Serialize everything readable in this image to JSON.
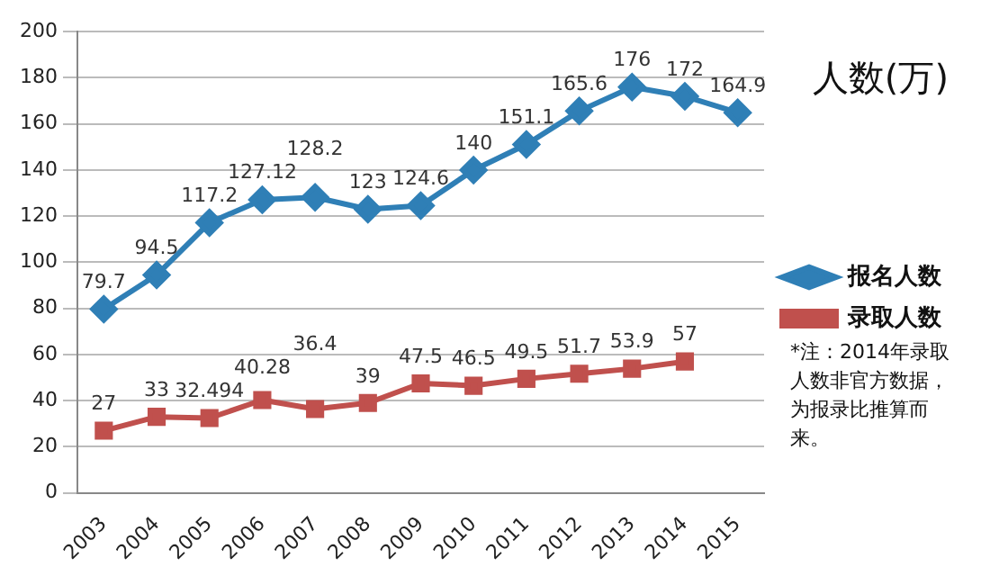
{
  "chart_data": {
    "type": "line",
    "title": "人数(万)",
    "categories": [
      "2003",
      "2004",
      "2005",
      "2006",
      "2007",
      "2008",
      "2009",
      "2010",
      "2011",
      "2012",
      "2013",
      "2014",
      "2015"
    ],
    "series": [
      {
        "name": "报名人数",
        "color": "#2f7fb6",
        "marker": "diamond",
        "values": [
          79.7,
          94.5,
          117.2,
          127.12,
          128.2,
          123,
          124.6,
          140,
          151.1,
          165.6,
          176,
          172,
          164.9
        ]
      },
      {
        "name": "录取人数",
        "color": "#c0504d",
        "marker": "square",
        "values": [
          27,
          33,
          32.494,
          40.28,
          36.4,
          39,
          47.5,
          46.5,
          49.5,
          51.7,
          53.9,
          57,
          null
        ]
      }
    ],
    "ylim": [
      0,
      200
    ],
    "yticks": [
      0,
      20,
      40,
      60,
      80,
      100,
      120,
      140,
      160,
      180,
      200
    ],
    "grid": "y",
    "legend": "right",
    "data_labels": true,
    "annotations": [
      "*注：2014年录取人数非官方数据，为报录比推算而来。"
    ]
  }
}
